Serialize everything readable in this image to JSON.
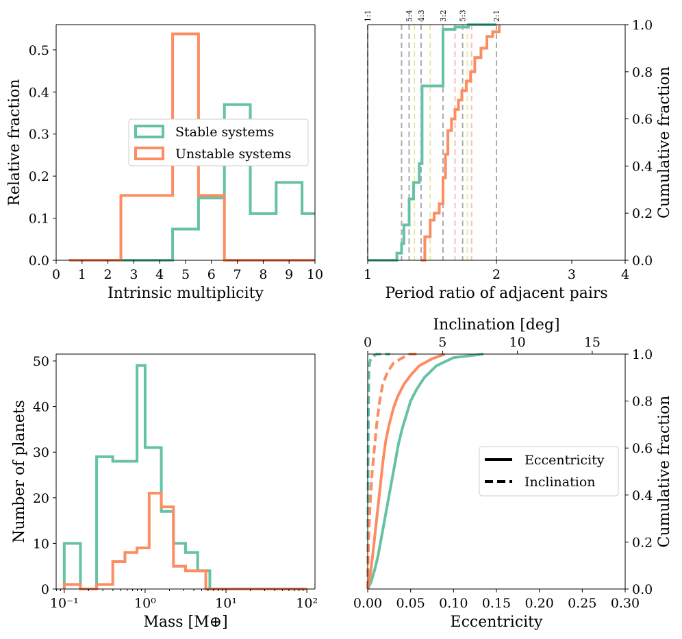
{
  "colors": {
    "stable": "#66c2a5",
    "unstable": "#fc8d62"
  },
  "chart_data": [
    {
      "id": "multiplicity",
      "type": "histogram",
      "xlabel": "Intrinsic multiplicity",
      "ylabel": "Relative fraction",
      "xlim": [
        0,
        10
      ],
      "ylim": [
        0,
        0.56
      ],
      "xticks": [
        0,
        1,
        2,
        3,
        4,
        5,
        6,
        7,
        8,
        9,
        10
      ],
      "yticks": [
        0.0,
        0.1,
        0.2,
        0.3,
        0.4,
        0.5
      ],
      "legend": {
        "position": "center",
        "entries": [
          "Stable systems",
          "Unstable systems"
        ]
      },
      "series": [
        {
          "name": "Stable systems",
          "bins": [
            0.5,
            1.5,
            2.5,
            3.5,
            4.5,
            5.5,
            6.5,
            7.5,
            8.5,
            9.5,
            10.5
          ],
          "values": [
            0,
            0,
            0,
            0,
            0.074,
            0.148,
            0.37,
            0.111,
            0.185,
            0.111
          ]
        },
        {
          "name": "Unstable systems",
          "bins": [
            0.5,
            1.5,
            2.5,
            3.5,
            4.5,
            5.5,
            6.5,
            7.5,
            8.5,
            9.5,
            10.5
          ],
          "values": [
            0,
            0,
            0.154,
            0.154,
            0.538,
            0.154,
            0,
            0,
            0,
            0
          ]
        }
      ]
    },
    {
      "id": "period_ratio",
      "type": "cumulative",
      "xscale": "log",
      "xlabel": "Period ratio of adjacent pairs",
      "ylabel": "Cumulative fraction",
      "xlim": [
        1,
        4
      ],
      "ylim": [
        0,
        1
      ],
      "xticks": [
        1,
        2,
        3,
        4
      ],
      "yticks": [
        0.0,
        0.2,
        0.4,
        0.6,
        0.8,
        1.0
      ],
      "resonances": [
        {
          "label": "1:1",
          "value": 1.0,
          "color": "#aaaaaa"
        },
        {
          "label": "5:4",
          "value": 1.25,
          "color": "#aaaaaa"
        },
        {
          "label": "4:3",
          "value": 1.333,
          "color": "#aaaaaa"
        },
        {
          "label": "3:2",
          "value": 1.5,
          "color": "#aaaaaa"
        },
        {
          "label": "5:3",
          "value": 1.667,
          "color": "#aaaaaa"
        },
        {
          "label": "2:1",
          "value": 2.0,
          "color": "#aaaaaa"
        }
      ],
      "extra_lines": [
        {
          "value": 1.2,
          "color": "#aaaaaa"
        },
        {
          "value": 1.286,
          "color": "#e8e8a8"
        },
        {
          "value": 1.4,
          "color": "#e8e8a8"
        },
        {
          "value": 1.6,
          "color": "#f8c0b8"
        },
        {
          "value": 1.75,
          "color": "#f8c0b8"
        },
        {
          "value": 1.71,
          "color": "#e8e8a8"
        }
      ],
      "series": [
        {
          "name": "Stable systems",
          "steps": [
            [
              1.0,
              0.0
            ],
            [
              1.17,
              0.0
            ],
            [
              1.17,
              0.03
            ],
            [
              1.2,
              0.03
            ],
            [
              1.2,
              0.07
            ],
            [
              1.215,
              0.07
            ],
            [
              1.215,
              0.15
            ],
            [
              1.25,
              0.15
            ],
            [
              1.25,
              0.26
            ],
            [
              1.28,
              0.26
            ],
            [
              1.28,
              0.33
            ],
            [
              1.32,
              0.33
            ],
            [
              1.32,
              0.41
            ],
            [
              1.34,
              0.41
            ],
            [
              1.34,
              0.74
            ],
            [
              1.5,
              0.74
            ],
            [
              1.5,
              0.98
            ],
            [
              1.6,
              0.98
            ],
            [
              1.6,
              0.99
            ],
            [
              1.72,
              0.99
            ],
            [
              1.72,
              1.0
            ],
            [
              2.0,
              1.0
            ]
          ]
        },
        {
          "name": "Unstable systems",
          "steps": [
            [
              1.33,
              0.0
            ],
            [
              1.36,
              0.1
            ],
            [
              1.4,
              0.17
            ],
            [
              1.43,
              0.2
            ],
            [
              1.47,
              0.24
            ],
            [
              1.5,
              0.35
            ],
            [
              1.52,
              0.45
            ],
            [
              1.54,
              0.55
            ],
            [
              1.57,
              0.6
            ],
            [
              1.6,
              0.64
            ],
            [
              1.63,
              0.68
            ],
            [
              1.66,
              0.72
            ],
            [
              1.7,
              0.76
            ],
            [
              1.74,
              0.8
            ],
            [
              1.78,
              0.86
            ],
            [
              1.84,
              0.9
            ],
            [
              1.9,
              0.95
            ],
            [
              1.96,
              0.97
            ],
            [
              2.03,
              1.0
            ]
          ]
        }
      ]
    },
    {
      "id": "mass",
      "type": "histogram",
      "xscale": "log",
      "xlabel": "Mass [M⊕]",
      "ylabel": "Number of planets",
      "xlim_log10": [
        -1.1,
        2.1
      ],
      "ylim": [
        0,
        51.5
      ],
      "xtick_labels": [
        {
          "exp": -1,
          "label": "10⁻¹"
        },
        {
          "exp": 0,
          "label": "10⁰"
        },
        {
          "exp": 1,
          "label": "10¹"
        },
        {
          "exp": 2,
          "label": "10²"
        }
      ],
      "yticks": [
        0,
        10,
        20,
        30,
        40,
        50
      ],
      "series": [
        {
          "name": "Stable systems",
          "bin_edges_log10": [
            -1.0,
            -0.8,
            -0.6,
            -0.4,
            -0.1,
            0.0,
            0.2,
            0.35,
            0.5,
            0.65,
            0.8
          ],
          "values": [
            10,
            0,
            29,
            28,
            49,
            31,
            17,
            10,
            8,
            4
          ]
        },
        {
          "name": "Unstable systems",
          "bin_edges_log10": [
            -1.0,
            -0.8,
            -0.6,
            -0.4,
            -0.25,
            -0.1,
            0.05,
            0.2,
            0.35,
            0.5,
            0.75
          ],
          "values": [
            1,
            0,
            1,
            6,
            8,
            9,
            21,
            18,
            5,
            4
          ]
        }
      ]
    },
    {
      "id": "ecc_inc",
      "type": "cumulative",
      "xlabel": "Eccentricity",
      "x2label": "Inclination [deg]",
      "ylabel": "Cumulative fraction",
      "xlim": [
        0,
        0.3
      ],
      "x2lim": [
        0,
        17.2
      ],
      "ylim": [
        0,
        1
      ],
      "xticks": [
        0.0,
        0.05,
        0.1,
        0.15,
        0.2,
        0.25,
        0.3
      ],
      "x2ticks": [
        0,
        5,
        10,
        15
      ],
      "yticks": [
        0.0,
        0.2,
        0.4,
        0.6,
        0.8,
        1.0
      ],
      "legend": {
        "position": "center-right",
        "entries": [
          "Eccentricity",
          "Inclination"
        ]
      },
      "series": [
        {
          "name": "Stable eccentricity",
          "points": [
            [
              0.0,
              0.0
            ],
            [
              0.004,
              0.03
            ],
            [
              0.008,
              0.08
            ],
            [
              0.012,
              0.14
            ],
            [
              0.015,
              0.2
            ],
            [
              0.018,
              0.26
            ],
            [
              0.021,
              0.32
            ],
            [
              0.024,
              0.38
            ],
            [
              0.027,
              0.44
            ],
            [
              0.03,
              0.5
            ],
            [
              0.033,
              0.56
            ],
            [
              0.036,
              0.62
            ],
            [
              0.04,
              0.68
            ],
            [
              0.045,
              0.74
            ],
            [
              0.05,
              0.8
            ],
            [
              0.057,
              0.85
            ],
            [
              0.066,
              0.9
            ],
            [
              0.08,
              0.95
            ],
            [
              0.1,
              0.985
            ],
            [
              0.135,
              1.0
            ]
          ]
        },
        {
          "name": "Unstable eccentricity",
          "points": [
            [
              0.0,
              0.0
            ],
            [
              0.003,
              0.06
            ],
            [
              0.006,
              0.15
            ],
            [
              0.009,
              0.25
            ],
            [
              0.012,
              0.35
            ],
            [
              0.015,
              0.45
            ],
            [
              0.018,
              0.55
            ],
            [
              0.021,
              0.63
            ],
            [
              0.025,
              0.7
            ],
            [
              0.03,
              0.77
            ],
            [
              0.035,
              0.82
            ],
            [
              0.042,
              0.87
            ],
            [
              0.05,
              0.91
            ],
            [
              0.06,
              0.95
            ],
            [
              0.075,
              0.98
            ],
            [
              0.09,
              1.0
            ]
          ]
        },
        {
          "name": "Stable inclination",
          "points_deg": [
            [
              0.0,
              0.0
            ],
            [
              0.01,
              0.1
            ],
            [
              0.02,
              0.3
            ],
            [
              0.03,
              0.55
            ],
            [
              0.05,
              0.78
            ],
            [
              0.08,
              0.92
            ],
            [
              0.12,
              0.96
            ],
            [
              0.2,
              0.98
            ],
            [
              0.35,
              0.99
            ],
            [
              0.6,
              1.0
            ],
            [
              1.5,
              1.0
            ]
          ]
        },
        {
          "name": "Unstable inclination",
          "points_deg": [
            [
              0.0,
              0.0
            ],
            [
              0.05,
              0.2
            ],
            [
              0.15,
              0.35
            ],
            [
              0.3,
              0.5
            ],
            [
              0.45,
              0.6
            ],
            [
              0.6,
              0.7
            ],
            [
              0.8,
              0.8
            ],
            [
              1.0,
              0.87
            ],
            [
              1.3,
              0.92
            ],
            [
              1.7,
              0.96
            ],
            [
              2.2,
              0.98
            ],
            [
              2.8,
              1.0
            ],
            [
              3.3,
              1.0
            ]
          ]
        }
      ]
    }
  ]
}
